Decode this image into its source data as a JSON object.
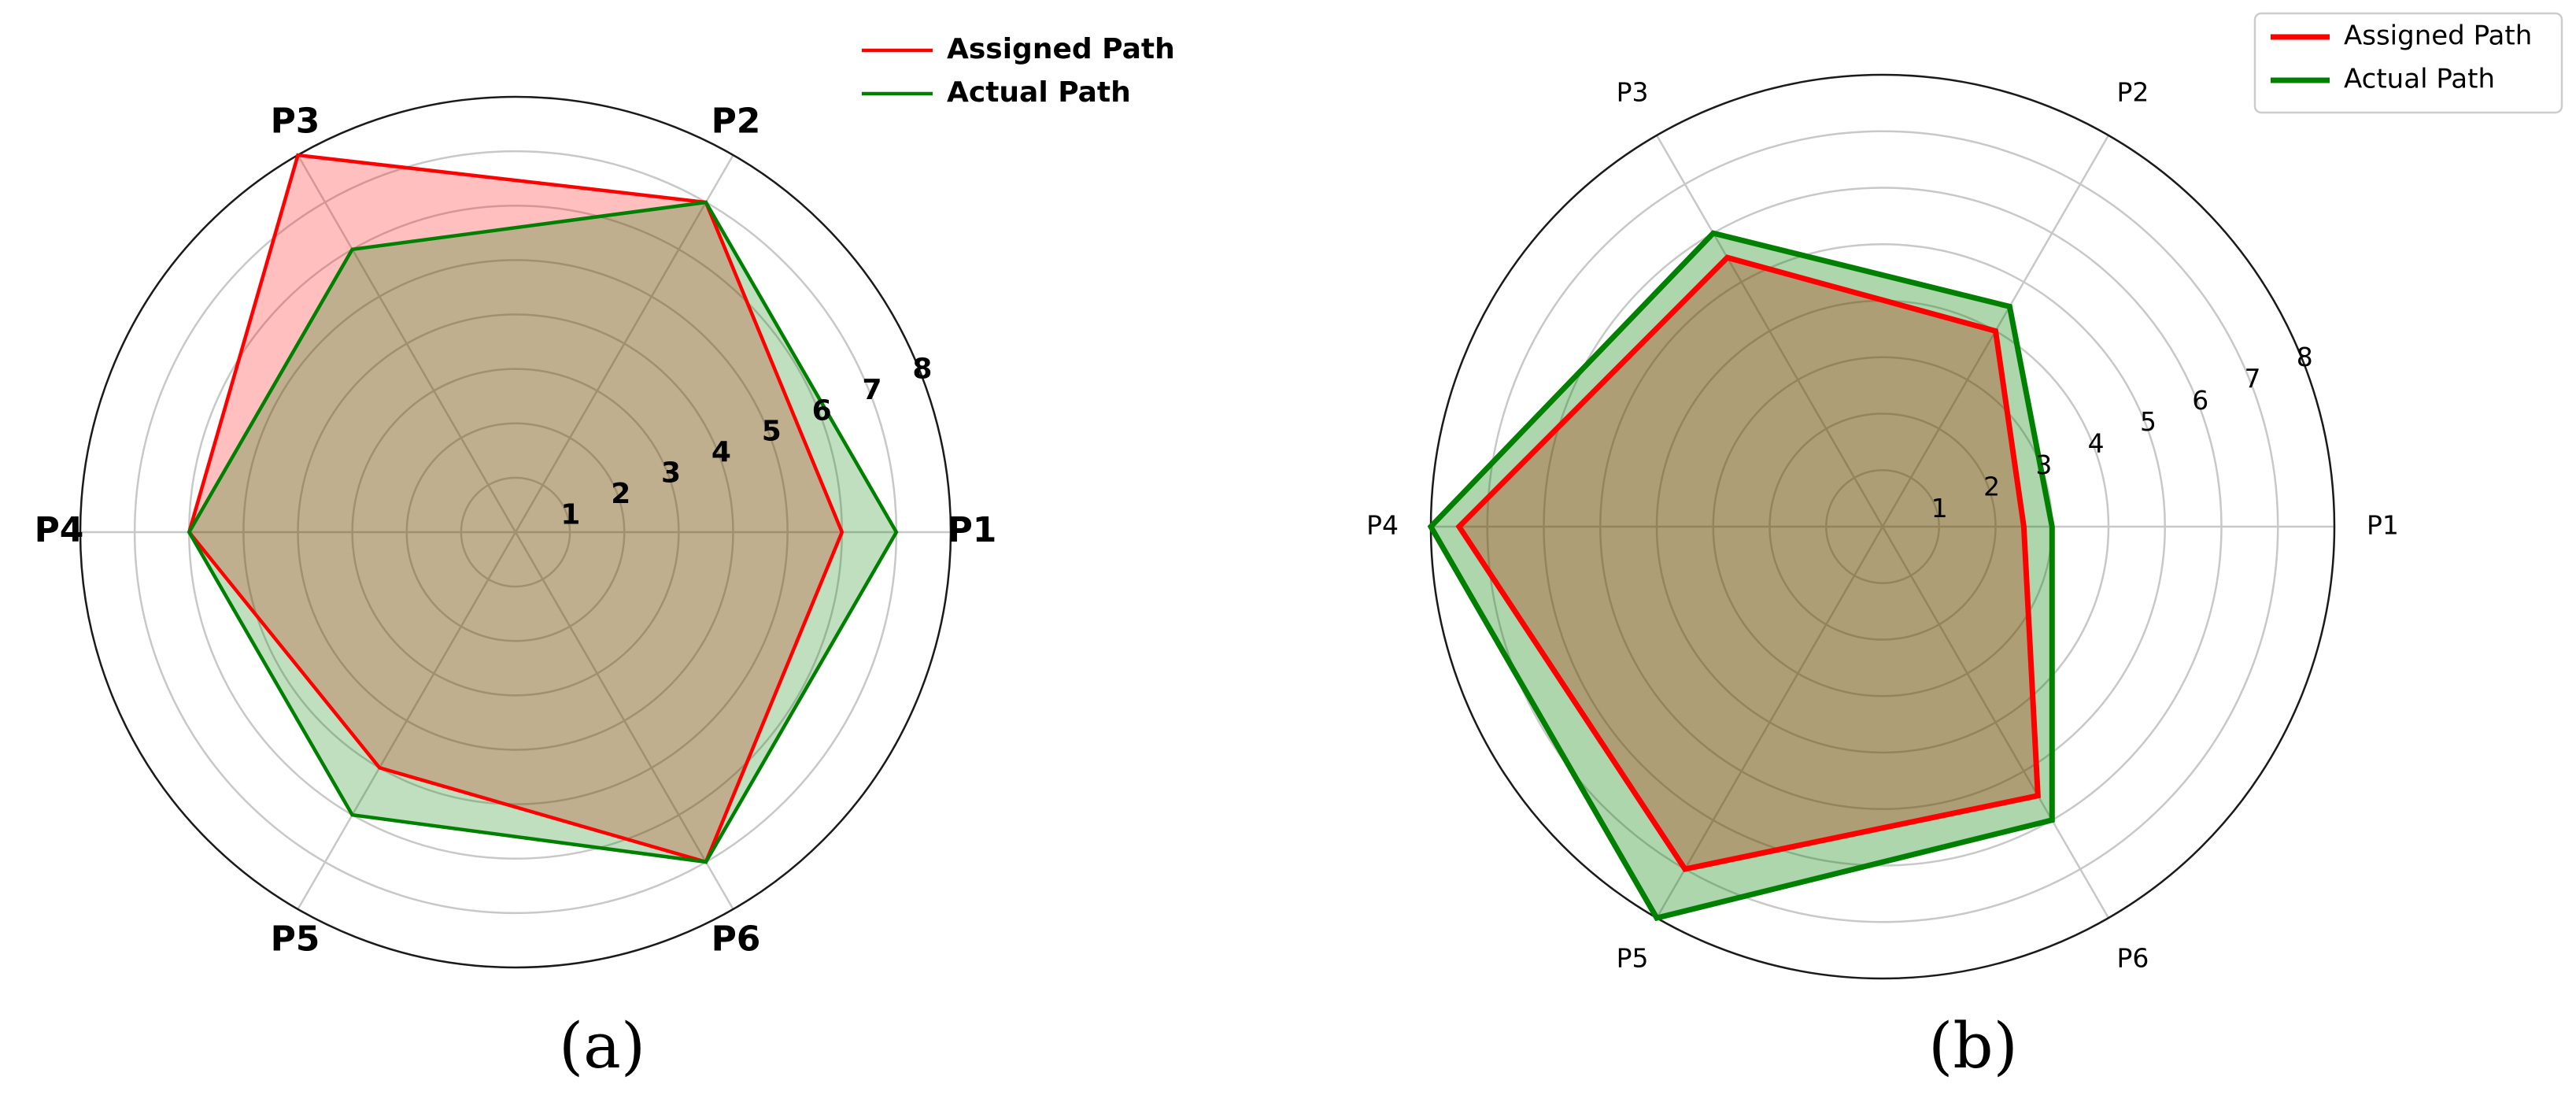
{
  "chart_data": [
    {
      "type": "radar",
      "panel_label": "(a)",
      "categories": [
        "P1",
        "P2",
        "P3",
        "P4",
        "P5",
        "P6"
      ],
      "rticks": [
        "1",
        "2",
        "3",
        "4",
        "5",
        "6",
        "7",
        "8"
      ],
      "rlim": [
        0,
        8
      ],
      "grid": true,
      "legend_position": "top-right",
      "series": [
        {
          "name": "Assigned Path",
          "color": "#ff0000",
          "fill": "#ff0000",
          "values": [
            6,
            7,
            8,
            6,
            5,
            7
          ]
        },
        {
          "name": "Actual Path",
          "color": "#008000",
          "fill": "#008000",
          "values": [
            7,
            7,
            6,
            6,
            6,
            7
          ]
        }
      ]
    },
    {
      "type": "radar",
      "panel_label": "(b)",
      "categories": [
        "P1",
        "P2",
        "P3",
        "P4",
        "P5",
        "P6"
      ],
      "rticks": [
        "1",
        "2",
        "3",
        "4",
        "5",
        "6",
        "7",
        "8"
      ],
      "rlim": [
        0,
        8
      ],
      "grid": true,
      "legend_position": "top-right",
      "series": [
        {
          "name": "Assigned Path",
          "color": "#ff0000",
          "fill": "#ff0000",
          "values": [
            2.5,
            4,
            5.5,
            7.5,
            7,
            5.5
          ]
        },
        {
          "name": "Actual Path",
          "color": "#008000",
          "fill": "#008000",
          "values": [
            3,
            4.5,
            6,
            8,
            8,
            6
          ]
        }
      ]
    }
  ]
}
